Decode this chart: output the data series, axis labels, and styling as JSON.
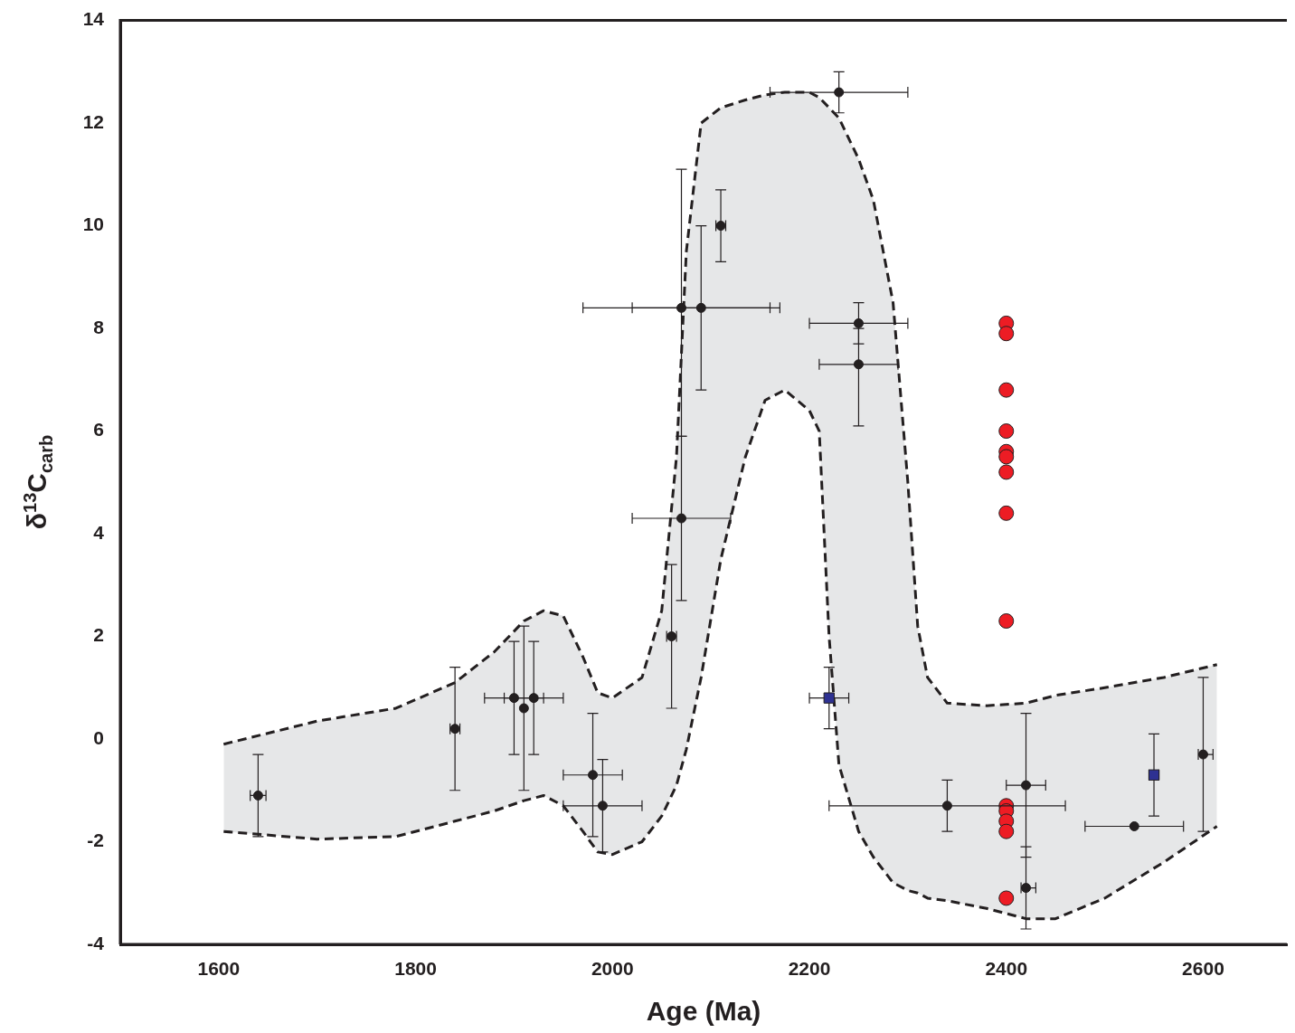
{
  "chart_data": {
    "type": "scatter",
    "xlabel": "Age (Ma)",
    "ylabel": "δ$^{13}$C$_{carb}$",
    "xlim": [
      1500,
      2685
    ],
    "ylim": [
      -4,
      14
    ],
    "xticks": [
      1600,
      1800,
      2000,
      2200,
      2400,
      2600
    ],
    "yticks": [
      -4,
      -2,
      0,
      2,
      4,
      6,
      8,
      10,
      12,
      14
    ],
    "grid": false,
    "legend": false,
    "series": [
      {
        "type": "line",
        "color": "#231f20",
        "line_style": "dashed",
        "x": [
          1605,
          1700,
          1780,
          1840,
          1880,
          1910,
          1930,
          1950,
          1970,
          1985,
          2000,
          2030,
          2050,
          2065,
          2075,
          2090,
          2110,
          2135,
          2155,
          2175,
          2200,
          2210,
          2220,
          2230,
          2250,
          2265,
          2285,
          2300,
          2310,
          2320,
          2340,
          2380,
          2420,
          2450,
          2500,
          2560,
          2614
        ],
        "values": [
          -0.1,
          0.35,
          0.6,
          1.1,
          1.7,
          2.3,
          2.5,
          2.4,
          1.6,
          0.9,
          0.8,
          1.2,
          2.5,
          5.5,
          9.5,
          12.0,
          12.3,
          12.45,
          12.55,
          12.6,
          12.6,
          12.5,
          12.3,
          12.1,
          11.3,
          10.5,
          8.5,
          5.0,
          2.2,
          1.2,
          0.7,
          0.65,
          0.7,
          0.85,
          1.0,
          1.2,
          1.45
        ],
        "upper": [
          -0.1,
          0.35,
          0.6,
          1.1,
          1.7,
          2.3,
          2.5,
          2.4,
          1.6,
          0.9,
          0.8,
          1.2,
          2.5,
          5.5,
          9.5,
          12.0,
          12.3,
          12.45,
          12.55,
          12.6,
          12.6,
          12.5,
          12.3,
          12.1,
          11.3,
          10.5,
          8.5,
          5.0,
          2.2,
          1.2,
          0.7,
          0.65,
          0.7,
          0.85,
          1.0,
          1.2,
          1.45
        ],
        "lower": [
          -1.8,
          -1.95,
          -1.9,
          -1.6,
          -1.4,
          -1.2,
          -1.1,
          -1.3,
          -1.8,
          -2.2,
          -2.25,
          -2.0,
          -1.5,
          -0.9,
          -0.2,
          1.2,
          3.5,
          5.5,
          6.6,
          6.8,
          6.4,
          6.0,
          2.0,
          -0.5,
          -1.8,
          -2.3,
          -2.8,
          -2.95,
          -3.0,
          -3.1,
          -3.15,
          -3.3,
          -3.5,
          -3.5,
          -3.1,
          -2.4,
          -1.7
        ]
      },
      {
        "type": "line",
        "color": "#231f20",
        "line_style": "dashed",
        "x": [
          1605,
          1700,
          1780,
          1840,
          1880,
          1910,
          1930,
          1950,
          1970,
          1985,
          2000,
          2030,
          2050,
          2065,
          2075,
          2090,
          2110,
          2135,
          2155,
          2175,
          2200,
          2210,
          2220,
          2230,
          2250,
          2265,
          2285,
          2300,
          2310,
          2320,
          2340,
          2380,
          2420,
          2450,
          2500,
          2560,
          2614
        ],
        "values": [
          -1.8,
          -1.95,
          -1.9,
          -1.6,
          -1.4,
          -1.2,
          -1.1,
          -1.3,
          -1.8,
          -2.2,
          -2.25,
          -2.0,
          -1.5,
          -0.9,
          -0.2,
          1.2,
          3.5,
          5.5,
          6.6,
          6.8,
          6.4,
          6.0,
          2.0,
          -0.5,
          -1.8,
          -2.3,
          -2.8,
          -2.95,
          -3.0,
          -3.1,
          -3.15,
          -3.3,
          -3.5,
          -3.5,
          -3.1,
          -2.4,
          -1.7
        ]
      },
      {
        "color": "#231f20",
        "marker": "circle",
        "x": [
          1640,
          1840,
          1900,
          1910,
          1920,
          1980,
          1990,
          2060,
          2070,
          2070,
          2090,
          2110,
          2230,
          2250,
          2250,
          2340,
          2420,
          2420,
          2530,
          2600
        ],
        "values": [
          -1.1,
          0.2,
          0.8,
          0.6,
          0.8,
          -0.7,
          -1.3,
          2.0,
          4.3,
          8.4,
          8.4,
          10.0,
          12.6,
          8.1,
          7.3,
          -1.3,
          -0.9,
          -2.9,
          -1.7,
          -0.3
        ],
        "errors": [
          [
            -1.9,
            -0.3
          ],
          [
            -1.0,
            1.4
          ],
          [
            -0.3,
            1.9
          ],
          [
            -1.0,
            2.2
          ],
          [
            -0.3,
            1.9
          ],
          [
            -1.9,
            0.5
          ],
          [
            -2.2,
            -0.4
          ],
          [
            0.6,
            3.4
          ],
          [
            2.7,
            5.9
          ],
          [
            5.9,
            11.1
          ],
          [
            6.8,
            10.0
          ],
          [
            9.3,
            10.7
          ],
          [
            12.2,
            13.0
          ],
          [
            7.7,
            8.5
          ],
          [
            6.1,
            8.0
          ],
          [
            -1.8,
            -0.8
          ],
          [
            -2.3,
            0.5
          ],
          [
            -3.7,
            -2.1
          ],
          null,
          [
            -1.8,
            1.2
          ]
        ],
        "xerrors": [
          [
            1632,
            1648
          ],
          [
            1835,
            1845
          ],
          [
            1870,
            1930
          ],
          null,
          [
            1890,
            1950
          ],
          [
            1950,
            2010
          ],
          [
            1950,
            2030
          ],
          [
            2055,
            2065
          ],
          [
            2020,
            2120
          ],
          [
            1970,
            2160
          ],
          [
            2020,
            2170
          ],
          [
            2105,
            2115
          ],
          [
            2160,
            2300
          ],
          [
            2200,
            2300
          ],
          [
            2210,
            2290
          ],
          [
            2220,
            2460
          ],
          [
            2400,
            2440
          ],
          [
            2415,
            2430
          ],
          [
            2480,
            2580
          ],
          [
            2595,
            2610
          ]
        ]
      },
      {
        "color": "#2e3192",
        "marker": "square",
        "x": [
          2220,
          2550
        ],
        "values": [
          0.8,
          -0.7
        ],
        "errors": [
          [
            0.2,
            1.4
          ],
          [
            -1.5,
            0.1
          ]
        ],
        "xerrors": [
          [
            2200,
            2240
          ],
          [
            2545,
            2555
          ]
        ]
      },
      {
        "color": "#ed1c24",
        "marker": "circle",
        "x": [
          2400,
          2400,
          2400,
          2400,
          2400,
          2400,
          2400,
          2400,
          2400,
          2400,
          2400,
          2400,
          2400,
          2400
        ],
        "values": [
          8.1,
          7.9,
          6.8,
          6.0,
          5.6,
          5.5,
          5.2,
          4.4,
          2.3,
          -1.3,
          -1.4,
          -1.6,
          -1.8,
          -3.1
        ]
      }
    ]
  }
}
